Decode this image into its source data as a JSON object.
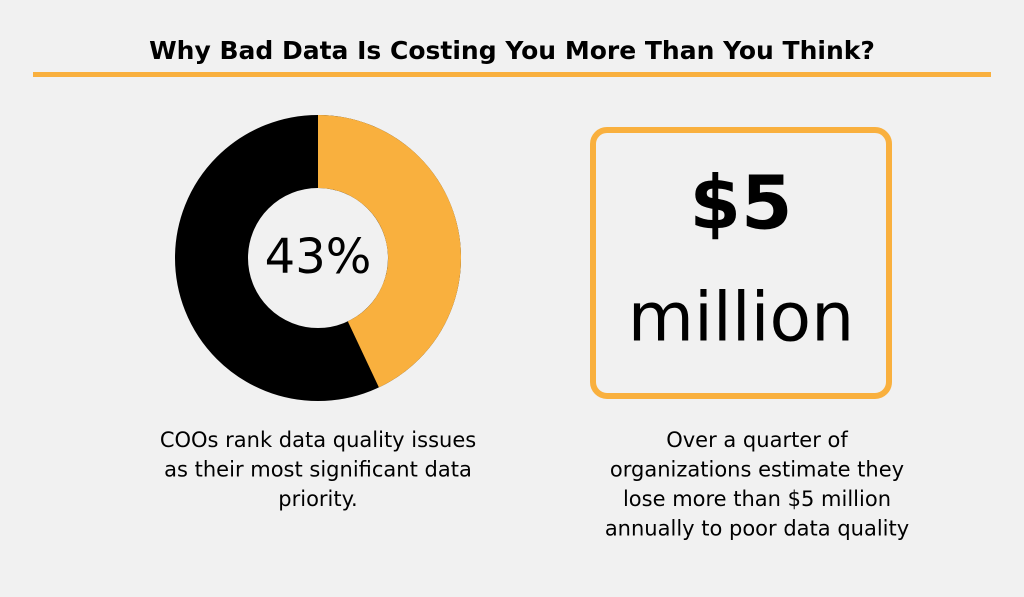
{
  "title": "Why Bad Data Is Costing You More Than You Think?",
  "donut": {
    "value": 43,
    "label": "43%",
    "color": "#f9b03e",
    "rest_color": "#000000"
  },
  "left_caption": [
    "COOs rank data quality issues",
    "as their most significant data",
    "priority."
  ],
  "stat": {
    "lines": [
      "$5",
      "million"
    ]
  },
  "right_caption": [
    "Over a quarter of",
    "organizations estimate they",
    "lose more than $5 million",
    "annually to poor data quality"
  ]
}
